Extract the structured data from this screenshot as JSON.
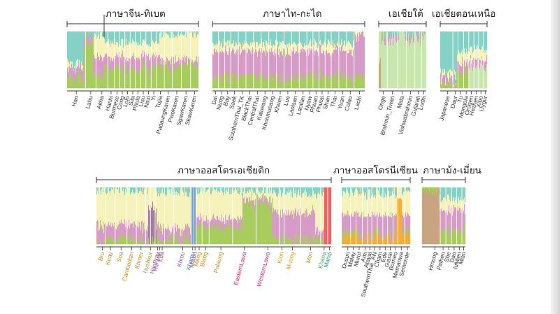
{
  "colors": {
    "cyan": "#86d1c6",
    "yellow": "#f5f2bb",
    "pink": "#d79bc8",
    "green": "#a8cd5e",
    "mauve": "#a07ea0",
    "light_green": "#c9e6af",
    "orange": "#f2ad3c",
    "blue": "#6f9fd4",
    "red": "#f06262",
    "tan": "#c8a482",
    "line": "#333333"
  },
  "chart_data": [
    {
      "type": "bar",
      "subtype": "stacked ancestry proportions",
      "group": "ภาษาจีน-ทิเบต",
      "populations": [
        {
          "name": "Han",
          "color": "#333333"
        },
        {
          "name": "Lahu",
          "color": "#333333"
        },
        {
          "name": "Akha",
          "color": "#333333"
        },
        {
          "name": "Hanhi",
          "color": "#333333"
        },
        {
          "name": "Burmese",
          "color": "#333333"
        },
        {
          "name": "Cong",
          "color": "#333333"
        },
        {
          "name": "Lolo",
          "color": "#333333"
        },
        {
          "name": "Sila",
          "color": "#333333"
        },
        {
          "name": "Phula",
          "color": "#333333"
        },
        {
          "name": "Lisu",
          "color": "#333333"
        },
        {
          "name": "Naxi",
          "color": "#333333"
        },
        {
          "name": "Yi",
          "color": "#333333"
        },
        {
          "name": "Tujia",
          "color": "#333333"
        },
        {
          "name": "PadaungKaren",
          "color": "#333333"
        },
        {
          "name": "PwoKaren",
          "color": "#333333"
        },
        {
          "name": "SgawKaren",
          "color": "#333333"
        },
        {
          "name": "SkawKaren",
          "color": "#333333"
        }
      ]
    },
    {
      "type": "bar",
      "subtype": "stacked ancestry proportions",
      "group": "ภาษาไท-กะได",
      "populations": [
        {
          "name": "Dai",
          "color": "#333333"
        },
        {
          "name": "Nung",
          "color": "#333333"
        },
        {
          "name": "Bay",
          "color": "#333333"
        },
        {
          "name": "Saek",
          "color": "#333333"
        },
        {
          "name": "SouthernThai_TK",
          "color": "#333333"
        },
        {
          "name": "BlackThai",
          "color": "#333333"
        },
        {
          "name": "CentralThai",
          "color": "#333333"
        },
        {
          "name": "Kalueang",
          "color": "#333333"
        },
        {
          "name": "Khonmueang",
          "color": "#333333"
        },
        {
          "name": "Khuen",
          "color": "#333333"
        },
        {
          "name": "Lue",
          "color": "#333333"
        },
        {
          "name": "Laolsan",
          "color": "#333333"
        },
        {
          "name": "Laotian",
          "color": "#333333"
        },
        {
          "name": "Nyaw",
          "color": "#333333"
        },
        {
          "name": "Phuan",
          "color": "#333333"
        },
        {
          "name": "Phutai",
          "color": "#333333"
        },
        {
          "name": "Shan",
          "color": "#333333"
        },
        {
          "name": "Thai",
          "color": "#333333"
        },
        {
          "name": "Yuan",
          "color": "#333333"
        },
        {
          "name": "Colao",
          "color": "#333333"
        },
        {
          "name": "Lachi",
          "color": "#333333"
        }
      ]
    },
    {
      "type": "bar",
      "subtype": "stacked ancestry proportions",
      "group": "เอเชียใต้",
      "populations": [
        {
          "name": "Onge",
          "color": "#333333"
        },
        {
          "name": "Brahmin_Tiwari",
          "color": "#333333"
        },
        {
          "name": "Mala",
          "color": "#333333"
        },
        {
          "name": "Vishwabrahmin",
          "color": "#333333"
        },
        {
          "name": "Gujarati",
          "color": "#333333"
        },
        {
          "name": "Lodhi",
          "color": "#333333"
        }
      ]
    },
    {
      "type": "bar",
      "subtype": "stacked ancestry proportions",
      "group": "เอเชียตอนเหนือ",
      "populations": [
        {
          "name": "Japanese",
          "color": "#333333"
        },
        {
          "name": "Daur",
          "color": "#333333"
        },
        {
          "name": "Tu",
          "color": "#333333"
        },
        {
          "name": "Mongola",
          "color": "#333333"
        },
        {
          "name": "Oroqen",
          "color": "#333333"
        },
        {
          "name": "Hezhen",
          "color": "#333333"
        },
        {
          "name": "Xibo",
          "color": "#333333"
        },
        {
          "name": "Uygur",
          "color": "#333333"
        }
      ]
    },
    {
      "type": "bar",
      "subtype": "stacked ancestry proportions",
      "group": "ภาษาออสโตรเอเชียติก",
      "populations": [
        {
          "name": "Bru",
          "color": "#c98a1c"
        },
        {
          "name": "Kuay",
          "color": "#c98a1c"
        },
        {
          "name": "Soa",
          "color": "#c98a1c"
        },
        {
          "name": "Cambodian",
          "color": "#c98a1c"
        },
        {
          "name": "Khmer",
          "color": "#c98a1c"
        },
        {
          "name": "Nyahkur",
          "color": "#b5a12a"
        },
        {
          "name": "HtinMal",
          "color": "#8c5a8c"
        },
        {
          "name": "HtinPray",
          "color": "#8c5a8c"
        },
        {
          "name": "Lua",
          "color": "#8c5a8c"
        },
        {
          "name": "Khmu",
          "color": "#8c5a8c"
        },
        {
          "name": "Khomu",
          "color": "#4f83c4"
        },
        {
          "name": "Mlabri",
          "color": "#8c5a8c"
        },
        {
          "name": "Mang",
          "color": "#c98a1c"
        },
        {
          "name": "Blang",
          "color": "#c98a1c"
        },
        {
          "name": "Palaung",
          "color": "#c98a1c"
        },
        {
          "name": "EasternLawa",
          "color": "#c42a7a"
        },
        {
          "name": "WesternLawa",
          "color": "#c42a7a"
        },
        {
          "name": "Kinh",
          "color": "#e09a1a"
        },
        {
          "name": "Muong",
          "color": "#e09a1a"
        },
        {
          "name": "Mon",
          "color": "#b8961e"
        },
        {
          "name": "Kharia",
          "color": "#5ba35b"
        },
        {
          "name": "Manqi",
          "color": "#24998c"
        }
      ]
    },
    {
      "type": "bar",
      "subtype": "stacked ancestry proportions",
      "group": "ภาษาออสโตรนีเซียน",
      "populations": [
        {
          "name": "Dusun",
          "color": "#333333"
        },
        {
          "name": "Malay",
          "color": "#333333"
        },
        {
          "name": "Murut",
          "color": "#333333"
        },
        {
          "name": "Ami",
          "color": "#333333"
        },
        {
          "name": "Atayal",
          "color": "#333333"
        },
        {
          "name": "SouthernThai_AN",
          "color": "#333333"
        },
        {
          "name": "Cham",
          "color": "#333333"
        },
        {
          "name": "Ede",
          "color": "#333333"
        },
        {
          "name": "Giarai",
          "color": "#333333"
        },
        {
          "name": "Borneo",
          "color": "#333333"
        },
        {
          "name": "Mamanwa",
          "color": "#333333"
        },
        {
          "name": "Semende",
          "color": "#333333"
        }
      ]
    },
    {
      "type": "bar",
      "subtype": "stacked ancestry proportions",
      "group": "ภาษาม้ง-เมี่ยน",
      "populations": [
        {
          "name": "Hmong",
          "color": "#333333"
        },
        {
          "name": "Pathen",
          "color": "#333333"
        },
        {
          "name": "She",
          "color": "#333333"
        },
        {
          "name": "Dao",
          "color": "#333333"
        },
        {
          "name": "IuMien",
          "color": "#333333"
        },
        {
          "name": "Miao",
          "color": "#333333"
        }
      ]
    }
  ]
}
